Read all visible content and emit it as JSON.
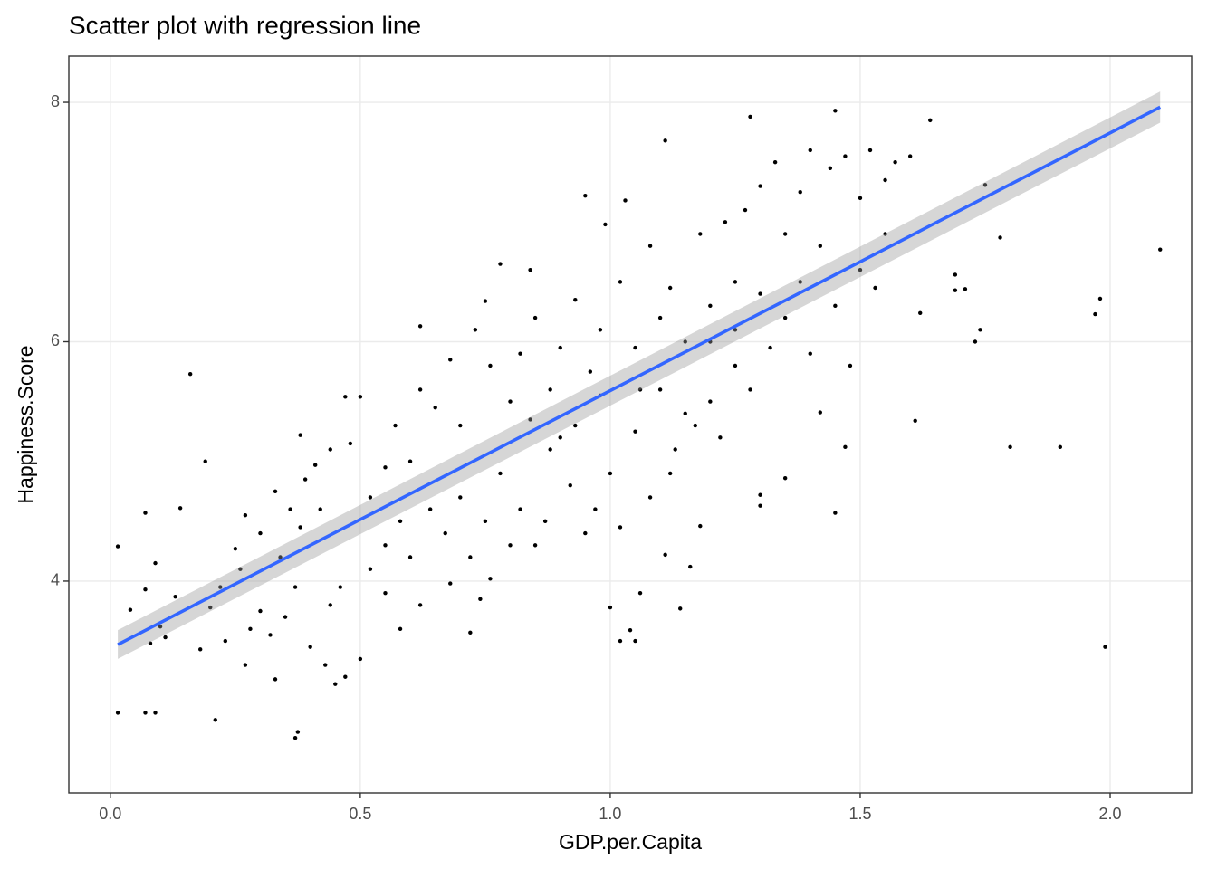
{
  "chart_data": {
    "type": "scatter",
    "title": "Scatter plot with regression line",
    "x_label": "GDP.per.Capita",
    "y_label": "Happiness.Score",
    "color": "#000000",
    "x": [
      0.015,
      0.07,
      0.09,
      0.21,
      0.37,
      0.375,
      0.16,
      0.015,
      0.07,
      0.19,
      1.99,
      2.1,
      1.97,
      1.98,
      1.8,
      1.9,
      1.64,
      1.45,
      1.28,
      1.11,
      1.75,
      1.78,
      1.74,
      1.73,
      1.61,
      1.62,
      1.69,
      1.71,
      1.69,
      1.45,
      1.42,
      1.47,
      1.3,
      1.3,
      1.35,
      1.14,
      1.18,
      1.16,
      1.02,
      1.04,
      1.05,
      1.0,
      1.06,
      1.11,
      0.95,
      0.99,
      1.03,
      0.75,
      0.78,
      0.84,
      0.62,
      0.38,
      0.47,
      0.5,
      0.47,
      0.45,
      0.33,
      0.27,
      0.18,
      0.2,
      0.08,
      0.1,
      0.07,
      0.04,
      0.09,
      0.14,
      0.13,
      0.11,
      0.23,
      0.28,
      0.3,
      0.32,
      0.35,
      0.37,
      0.4,
      0.43,
      0.44,
      0.46,
      0.5,
      0.55,
      0.58,
      0.62,
      0.68,
      0.72,
      0.74,
      0.76,
      0.25,
      0.27,
      0.3,
      0.33,
      0.36,
      0.39,
      0.41,
      0.44,
      0.48,
      0.52,
      0.55,
      0.57,
      0.6,
      0.62,
      0.65,
      0.68,
      0.7,
      0.73,
      0.76,
      0.8,
      0.82,
      0.85,
      0.88,
      0.9,
      0.93,
      0.96,
      0.98,
      1.02,
      1.05,
      1.08,
      1.1,
      1.12,
      1.15,
      1.18,
      1.2,
      1.23,
      1.25,
      1.27,
      1.3,
      1.33,
      1.35,
      1.38,
      1.4,
      1.42,
      1.44,
      1.47,
      1.5,
      1.52,
      1.55,
      1.57,
      1.5,
      1.53,
      1.48,
      1.4,
      1.32,
      1.28,
      1.25,
      1.2,
      1.17,
      1.13,
      1.1,
      1.05,
      1.0,
      0.97,
      0.95,
      0.92,
      0.9,
      0.87,
      0.85,
      0.82,
      0.8,
      0.78,
      0.75,
      0.72,
      0.7,
      0.67,
      0.64,
      0.6,
      0.58,
      0.55,
      0.52,
      1.02,
      1.08,
      1.12,
      1.15,
      1.22,
      0.93,
      0.98,
      1.06,
      0.88,
      0.84,
      0.22,
      0.26,
      0.34,
      0.38,
      0.42,
      1.6,
      1.55,
      1.45,
      1.38,
      1.35,
      1.3,
      1.25,
      1.2
    ],
    "values": [
      2.9,
      2.9,
      2.9,
      2.84,
      2.69,
      2.74,
      5.73,
      4.29,
      4.57,
      5.0,
      3.45,
      6.77,
      6.23,
      6.36,
      5.12,
      5.12,
      7.85,
      7.93,
      7.88,
      7.68,
      7.31,
      6.87,
      6.1,
      6.0,
      5.34,
      6.24,
      6.56,
      6.44,
      6.43,
      4.57,
      5.41,
      5.12,
      4.72,
      4.63,
      4.86,
      3.77,
      4.46,
      4.12,
      3.5,
      3.59,
      3.5,
      3.78,
      3.9,
      4.22,
      7.22,
      6.98,
      7.18,
      6.34,
      6.65,
      6.6,
      6.13,
      5.22,
      5.54,
      5.54,
      3.2,
      3.14,
      3.18,
      3.3,
      3.43,
      3.78,
      3.48,
      3.62,
      3.93,
      3.76,
      4.15,
      4.61,
      3.87,
      3.53,
      3.5,
      3.6,
      3.75,
      3.55,
      3.7,
      3.95,
      3.45,
      3.3,
      3.8,
      3.95,
      3.35,
      3.9,
      3.6,
      3.8,
      3.98,
      3.57,
      3.85,
      4.02,
      4.27,
      4.55,
      4.4,
      4.75,
      4.6,
      4.85,
      4.97,
      5.1,
      5.15,
      4.7,
      4.95,
      5.3,
      5.0,
      5.6,
      5.45,
      5.85,
      5.3,
      6.1,
      5.8,
      5.5,
      5.9,
      6.2,
      5.6,
      5.95,
      6.35,
      5.75,
      6.1,
      6.5,
      5.95,
      6.8,
      6.2,
      6.45,
      6.0,
      6.9,
      6.3,
      7.0,
      6.5,
      7.1,
      7.3,
      7.5,
      6.9,
      7.25,
      7.6,
      6.8,
      7.45,
      7.55,
      7.2,
      7.6,
      7.35,
      7.5,
      6.6,
      6.45,
      5.8,
      5.9,
      5.95,
      5.6,
      5.8,
      5.5,
      5.3,
      5.1,
      5.6,
      5.25,
      4.9,
      4.6,
      4.4,
      4.8,
      5.2,
      4.5,
      4.3,
      4.6,
      4.3,
      4.9,
      4.5,
      4.2,
      4.7,
      4.4,
      4.6,
      4.2,
      4.5,
      4.3,
      4.1,
      4.45,
      4.7,
      4.9,
      5.4,
      5.2,
      5.3,
      5.55,
      5.6,
      5.1,
      5.35,
      3.95,
      4.1,
      4.2,
      4.45,
      4.6,
      7.55,
      6.9,
      6.3,
      6.5,
      6.2,
      6.4,
      6.1,
      6.0
    ],
    "regression": {
      "color": "#3366ff",
      "band_color": "#999999",
      "x": [
        0.015,
        2.1
      ],
      "values": [
        3.47,
        7.96
      ],
      "lower": [
        3.35,
        7.83
      ],
      "upper": [
        3.59,
        8.09
      ]
    },
    "xlim": [
      -0.083,
      2.163
    ],
    "ylim": [
      2.23,
      8.386
    ],
    "xticks": [
      {
        "value": 0,
        "label": "0.0"
      },
      0.5,
      {
        "value": 1,
        "label": "1.0"
      },
      1.5,
      {
        "value": 2,
        "label": "2.0"
      }
    ],
    "yticks": [
      4,
      6,
      8
    ],
    "grid": true
  }
}
